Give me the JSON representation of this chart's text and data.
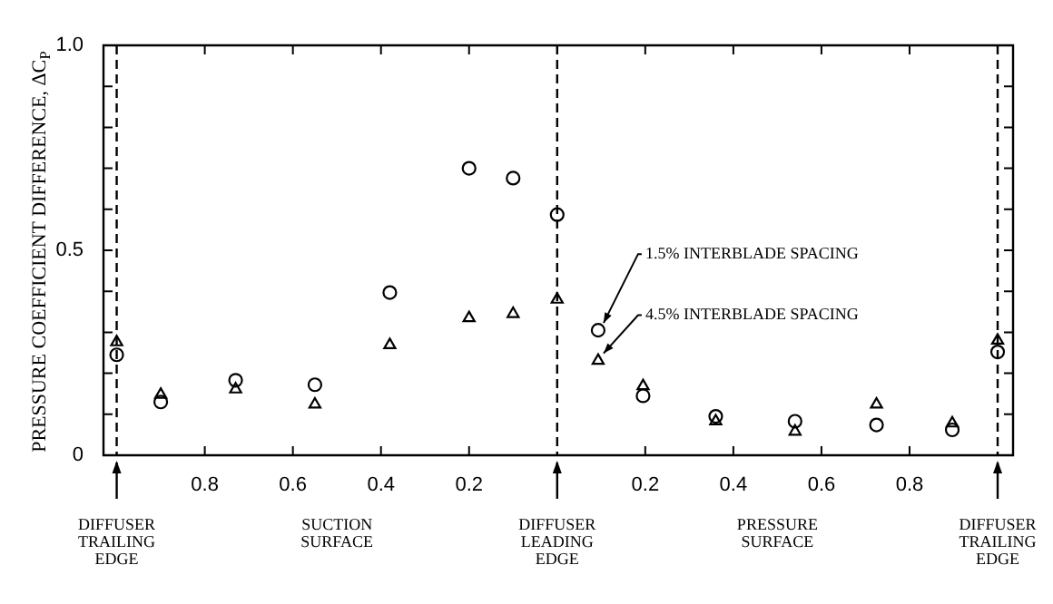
{
  "chart_data": {
    "type": "scatter",
    "ylabel": "PRESSURE COEFFICIENT DIFFERENCE, ΔC$_{P}$",
    "series": [
      {
        "color": "#000000",
        "marker": "circle",
        "x": [
          -1.0,
          -0.9,
          -0.73,
          -0.55,
          -0.38,
          -0.2,
          -0.1,
          0.0,
          0.093,
          0.195,
          0.36,
          0.54,
          0.725,
          0.897,
          1.0
        ],
        "values": [
          0.245,
          0.13,
          0.183,
          0.172,
          0.397,
          0.7,
          0.676,
          0.587,
          0.305,
          0.145,
          0.095,
          0.083,
          0.074,
          0.062,
          0.252
        ]
      },
      {
        "color": "#000000",
        "marker": "triangle",
        "x": [
          -1.0,
          -0.9,
          -0.73,
          -0.55,
          -0.38,
          -0.2,
          -0.1,
          0.0,
          0.093,
          0.195,
          0.36,
          0.54,
          0.725,
          0.897,
          1.0
        ],
        "values": [
          0.276,
          0.148,
          0.161,
          0.124,
          0.269,
          0.335,
          0.345,
          0.38,
          0.231,
          0.169,
          0.083,
          0.058,
          0.124,
          0.078,
          0.28
        ]
      }
    ],
    "xlim": [
      -1.03,
      1.035
    ],
    "xticks": [
      {
        "value": -0.8,
        "label": "0.8"
      },
      {
        "value": -0.6,
        "label": "0.6"
      },
      {
        "value": -0.4,
        "label": "0.4"
      },
      {
        "value": -0.2,
        "label": "0.2"
      },
      0.2,
      0.4,
      0.6,
      0.8
    ],
    "ylim": [
      0,
      1.0
    ],
    "yticks": [
      0,
      {
        "value": 0.1,
        "label": null
      },
      {
        "value": 0.2,
        "label": null
      },
      {
        "value": 0.3,
        "label": null
      },
      {
        "value": 0.4,
        "label": null
      },
      0.5,
      {
        "value": 0.6,
        "label": null
      },
      {
        "value": 0.7,
        "label": null
      },
      {
        "value": 0.8,
        "label": null
      },
      {
        "value": 0.9,
        "label": null
      },
      {
        "value": 1.0,
        "label": "1.0"
      }
    ],
    "ref_lines": [
      {
        "axis": "x",
        "value": -1.0,
        "label": "DIFFUSER TRAILING EDGE",
        "line_style": "dashed"
      },
      {
        "axis": "x",
        "value": 0.0,
        "label": "DIFFUSER LEADING EDGE",
        "line_style": "dashed"
      },
      {
        "axis": "x",
        "value": 1.0,
        "label": "DIFFUSER TRAILING EDGE",
        "line_style": "dashed"
      }
    ],
    "annotations": [
      "SUCTION SURFACE",
      "PRESSURE SURFACE",
      {
        "text": "1.5% INTERBLADE SPACING",
        "x": 0.093,
        "y": 0.305
      },
      {
        "text": "4.5% INTERBLADE SPACING",
        "x": 0.093,
        "y": 0.231
      }
    ],
    "grid": false,
    "legend": false
  }
}
